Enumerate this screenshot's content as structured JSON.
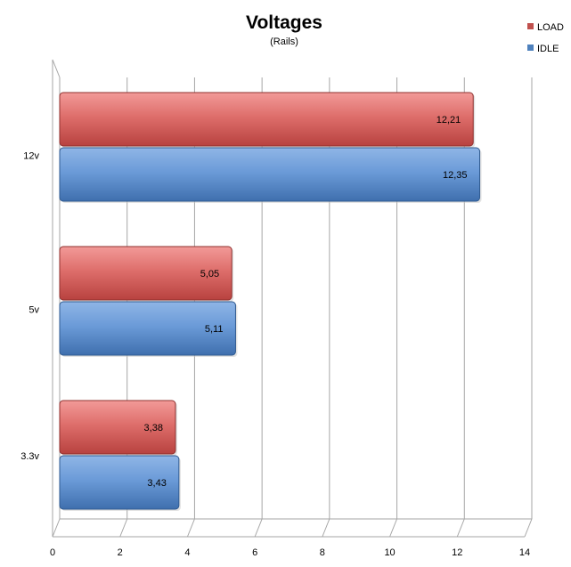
{
  "chart_data": {
    "type": "bar",
    "orientation": "horizontal",
    "title": "Voltages",
    "subtitle": "(Rails)",
    "categories": [
      "12v",
      "5v",
      "3.3v"
    ],
    "series": [
      {
        "name": "LOAD",
        "color": "#c0504d",
        "values": [
          12.21,
          5.05,
          3.38
        ],
        "labels": [
          "12,21",
          "5,05",
          "3,38"
        ]
      },
      {
        "name": "IDLE",
        "color": "#4f81bd",
        "values": [
          12.35,
          5.11,
          3.43
        ],
        "labels": [
          "12,35",
          "5,11",
          "3,43"
        ]
      }
    ],
    "xlim": [
      0,
      14
    ],
    "xticks": [
      0,
      2,
      4,
      6,
      8,
      10,
      12,
      14
    ],
    "grid": true,
    "legend": "top-right",
    "style": "3d"
  }
}
